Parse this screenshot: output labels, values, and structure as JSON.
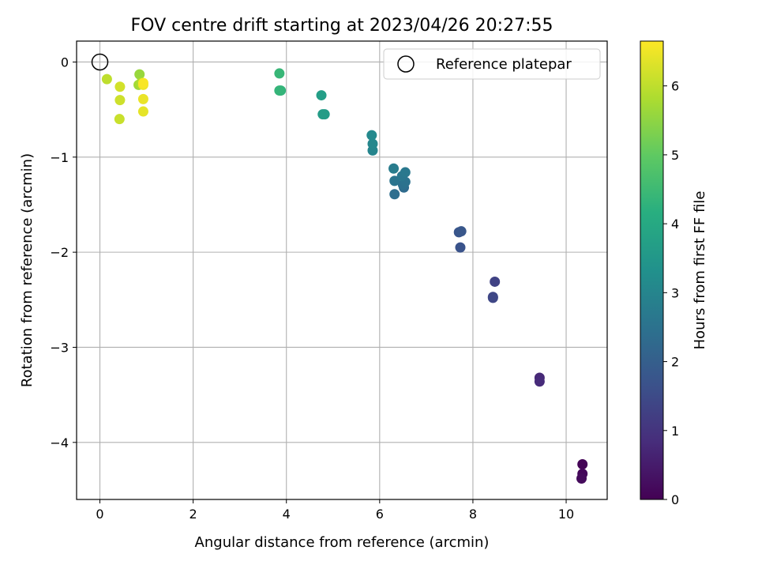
{
  "chart_data": {
    "type": "scatter",
    "title": "FOV centre drift starting at 2023/04/26 20:27:55",
    "xlabel": "Angular distance from reference (arcmin)",
    "ylabel": "Rotation from reference (arcmin)",
    "xlim": [
      -0.5,
      10.88
    ],
    "ylim": [
      -4.6,
      0.22
    ],
    "xticks": [
      0,
      2,
      4,
      6,
      8,
      10
    ],
    "yticks": [
      0,
      -1,
      -2,
      -3,
      -4
    ],
    "xtick_labels": [
      "0",
      "2",
      "4",
      "6",
      "8",
      "10"
    ],
    "ytick_labels": [
      "0",
      "−1",
      "−2",
      "−3",
      "−4"
    ],
    "grid": true,
    "legend": {
      "placement": "top-right",
      "entries": [
        "Reference platepar"
      ]
    },
    "reference_point": {
      "x": 0,
      "y": 0
    },
    "colorbar": {
      "label": "Hours from first FF file",
      "colormap": "viridis",
      "range": [
        0,
        6.65
      ],
      "ticks": [
        0,
        1,
        2,
        3,
        4,
        5,
        6
      ],
      "tick_labels": [
        "0",
        "1",
        "2",
        "3",
        "4",
        "5",
        "6"
      ]
    },
    "points": [
      {
        "x": 10.35,
        "y": -4.23,
        "c": 0.05
      },
      {
        "x": 10.35,
        "y": -4.33,
        "c": 0.12
      },
      {
        "x": 10.33,
        "y": -4.38,
        "c": 0.18
      },
      {
        "x": 9.43,
        "y": -3.32,
        "c": 0.75
      },
      {
        "x": 9.43,
        "y": -3.36,
        "c": 0.8
      },
      {
        "x": 8.47,
        "y": -2.31,
        "c": 1.3
      },
      {
        "x": 8.43,
        "y": -2.47,
        "c": 1.4
      },
      {
        "x": 8.43,
        "y": -2.48,
        "c": 1.42
      },
      {
        "x": 7.73,
        "y": -1.95,
        "c": 1.7
      },
      {
        "x": 7.7,
        "y": -1.79,
        "c": 1.75
      },
      {
        "x": 7.75,
        "y": -1.78,
        "c": 1.78
      },
      {
        "x": 6.52,
        "y": -1.32,
        "c": 2.3
      },
      {
        "x": 6.32,
        "y": -1.39,
        "c": 2.4
      },
      {
        "x": 6.5,
        "y": -1.29,
        "c": 2.45
      },
      {
        "x": 6.55,
        "y": -1.26,
        "c": 2.5
      },
      {
        "x": 6.32,
        "y": -1.25,
        "c": 2.55
      },
      {
        "x": 6.48,
        "y": -1.2,
        "c": 2.6
      },
      {
        "x": 6.55,
        "y": -1.16,
        "c": 2.65
      },
      {
        "x": 6.3,
        "y": -1.12,
        "c": 2.75
      },
      {
        "x": 5.85,
        "y": -0.93,
        "c": 3.0
      },
      {
        "x": 5.85,
        "y": -0.86,
        "c": 3.05
      },
      {
        "x": 5.83,
        "y": -0.77,
        "c": 3.1
      },
      {
        "x": 4.82,
        "y": -0.55,
        "c": 3.6
      },
      {
        "x": 4.78,
        "y": -0.55,
        "c": 3.65
      },
      {
        "x": 4.75,
        "y": -0.35,
        "c": 3.7
      },
      {
        "x": 3.88,
        "y": -0.3,
        "c": 4.3
      },
      {
        "x": 3.85,
        "y": -0.3,
        "c": 4.35
      },
      {
        "x": 3.85,
        "y": -0.12,
        "c": 4.4
      },
      {
        "x": 0.85,
        "y": -0.13,
        "c": 5.6
      },
      {
        "x": 0.83,
        "y": -0.24,
        "c": 5.7
      },
      {
        "x": 0.88,
        "y": -0.22,
        "c": 5.8
      },
      {
        "x": 0.15,
        "y": -0.18,
        "c": 6.0
      },
      {
        "x": 0.42,
        "y": -0.6,
        "c": 6.1
      },
      {
        "x": 0.43,
        "y": -0.4,
        "c": 6.15
      },
      {
        "x": 0.43,
        "y": -0.26,
        "c": 6.2
      },
      {
        "x": 0.93,
        "y": -0.52,
        "c": 6.4
      },
      {
        "x": 0.93,
        "y": -0.39,
        "c": 6.45
      },
      {
        "x": 0.93,
        "y": -0.24,
        "c": 6.5
      },
      {
        "x": 0.93,
        "y": -0.22,
        "c": 6.6
      }
    ]
  }
}
